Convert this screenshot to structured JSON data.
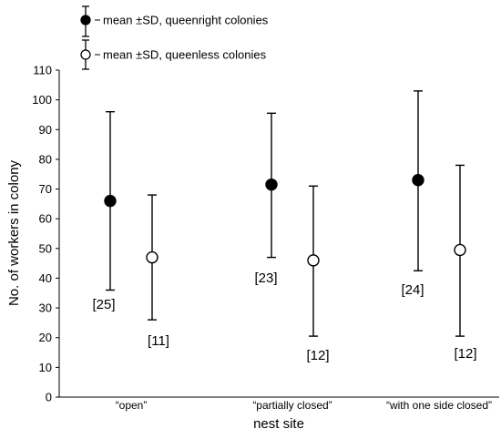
{
  "chart_data": {
    "type": "scatter",
    "xlabel": "nest site",
    "ylabel": "No. of workers in colony",
    "ylim": [
      0,
      110
    ],
    "yticks": [
      0,
      10,
      20,
      30,
      40,
      50,
      60,
      70,
      80,
      90,
      100,
      110
    ],
    "categories": [
      "“open”",
      "“partially closed”",
      "“with one side closed”"
    ],
    "legend_position": "top-left",
    "series": [
      {
        "name": "mean ±SD, queenright colonies",
        "marker": "filled-circle",
        "color": "#000000",
        "means": [
          66,
          71.5,
          73
        ],
        "lower": [
          36,
          47,
          42.5
        ],
        "upper": [
          96,
          95.5,
          103
        ],
        "n_labels": [
          "[25]",
          "[23]",
          "[24]"
        ]
      },
      {
        "name": "mean ±SD, queenless colonies",
        "marker": "open-circle",
        "color": "#ffffff",
        "means": [
          47,
          46,
          49.5
        ],
        "lower": [
          26,
          20.5,
          20.5
        ],
        "upper": [
          68,
          71,
          78
        ],
        "n_labels": [
          "[11]",
          "[12]",
          "[12]"
        ]
      }
    ]
  }
}
